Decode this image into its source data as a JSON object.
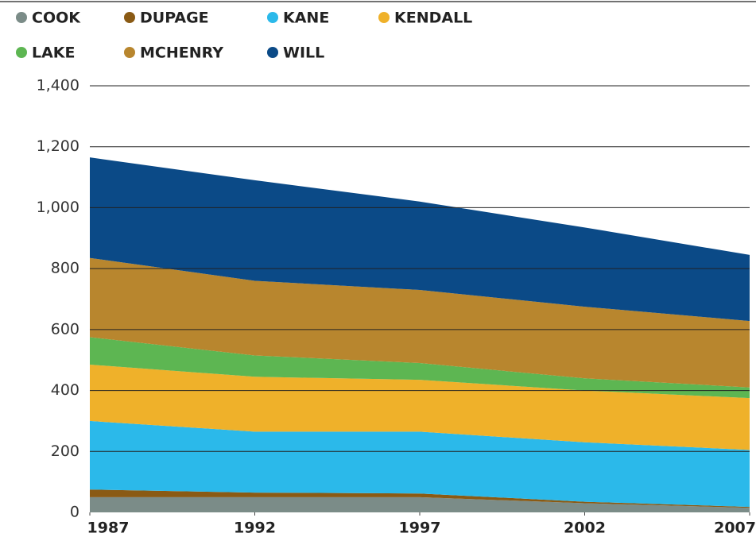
{
  "chart_data": {
    "type": "stacked_area",
    "x": [
      1987,
      1992,
      1997,
      2002,
      2007
    ],
    "series": [
      {
        "name": "COOK",
        "color": "#7b8c88",
        "values": [
          50,
          50,
          50,
          30,
          15
        ]
      },
      {
        "name": "DUPAGE",
        "color": "#8a5a14",
        "values": [
          25,
          15,
          12,
          5,
          3
        ]
      },
      {
        "name": "KANE",
        "color": "#2bb9ea",
        "values": [
          225,
          200,
          203,
          195,
          187
        ]
      },
      {
        "name": "KENDALL",
        "color": "#efb12a",
        "values": [
          185,
          180,
          170,
          170,
          170
        ]
      },
      {
        "name": "LAKE",
        "color": "#5db652",
        "values": [
          90,
          70,
          55,
          40,
          35
        ]
      },
      {
        "name": "MCHENRY",
        "color": "#b8862e",
        "values": [
          260,
          245,
          240,
          235,
          218
        ]
      },
      {
        "name": "WILL",
        "color": "#0b4a87",
        "values": [
          330,
          330,
          290,
          260,
          217
        ]
      }
    ],
    "xlim": [
      1987,
      2007
    ],
    "xticks": [
      1987,
      1992,
      1997,
      2002,
      2007
    ],
    "ylim": [
      0,
      1400
    ],
    "yticks": [
      0,
      200,
      400,
      600,
      800,
      {
        "value": 1000,
        "label": "1,000"
      },
      {
        "value": 1200,
        "label": "1,200"
      },
      {
        "value": 1400,
        "label": "1,400"
      }
    ],
    "grid": true
  }
}
